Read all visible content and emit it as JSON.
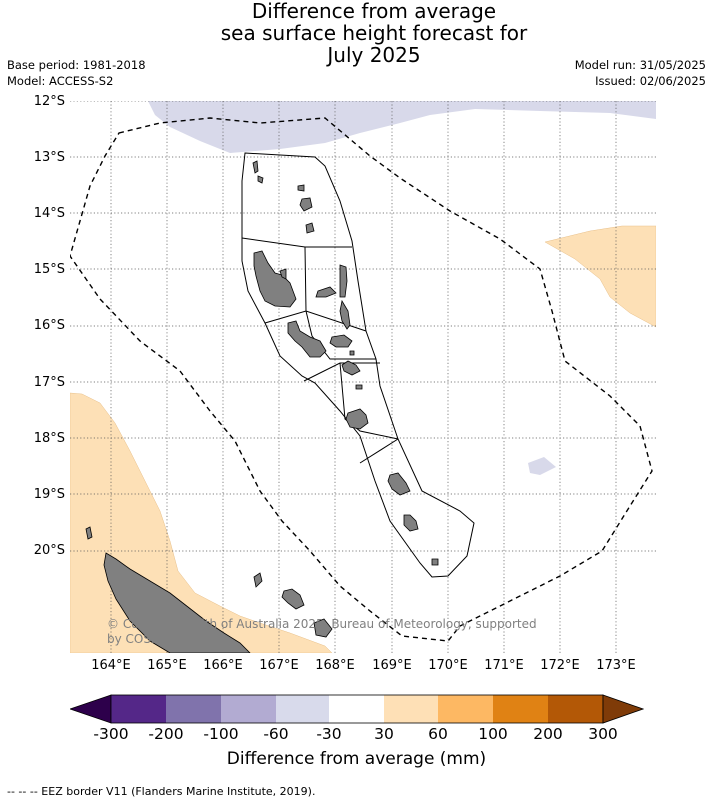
{
  "title": {
    "line1": "Difference from average",
    "line2": "sea surface height forecast for",
    "line3": "July 2025"
  },
  "meta": {
    "base_period": "Base period: 1981-2018",
    "model": "Model: ACCESS-S2",
    "model_run": "Model run: 31/05/2025",
    "issued": "Issued: 02/06/2025"
  },
  "map": {
    "lat_labels": [
      "12°S",
      "13°S",
      "14°S",
      "15°S",
      "16°S",
      "17°S",
      "18°S",
      "19°S",
      "20°S"
    ],
    "lon_labels": [
      "164°E",
      "165°E",
      "166°E",
      "167°E",
      "168°E",
      "169°E",
      "170°E",
      "171°E",
      "172°E",
      "173°E"
    ],
    "copyright_line1": "© Commonwealth of Australia 2025, Bureau of Meteorology, supported",
    "copyright_line2": "by COSPPac",
    "colors": {
      "land": "#808080",
      "positive_30_60": "#fde0b6",
      "negative_60_30": "#d8d9ea",
      "grid": "#555555",
      "eez_line": "#000000"
    }
  },
  "colorbar": {
    "title": "Difference from average (mm)",
    "ticks": [
      "-300",
      "-200",
      "-100",
      "-60",
      "-30",
      "30",
      "60",
      "100",
      "200",
      "300"
    ],
    "under_color": "#2d004b",
    "over_color": "#7f3b08",
    "bin_colors": [
      "#542788",
      "#8073ac",
      "#b2abd2",
      "#d8daeb",
      "#ffffff",
      "#fee0b6",
      "#fdb863",
      "#e08214",
      "#b35806"
    ]
  },
  "footnote": "--  --  -- EEZ border V11 (Flanders Marine Institute, 2019)."
}
